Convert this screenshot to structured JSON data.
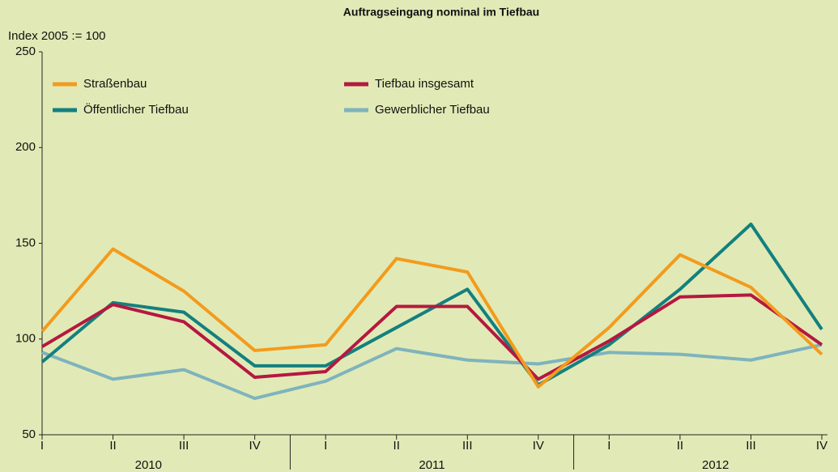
{
  "chart_data": {
    "type": "line",
    "title": "Auftragseingang nominal im Tiefbau",
    "y_label": "Index 2005 := 100",
    "categories": [
      "I",
      "II",
      "III",
      "IV",
      "I",
      "II",
      "III",
      "IV",
      "I",
      "II",
      "III",
      "IV"
    ],
    "year_groups": [
      "2010",
      "2011",
      "2012"
    ],
    "ylim": [
      50,
      250
    ],
    "yticks": [
      50,
      100,
      150,
      200,
      250
    ],
    "grid": false,
    "series": [
      {
        "name": "Straßenbau",
        "color": "#f39b1d",
        "values": [
          104,
          147,
          125,
          94,
          97,
          142,
          135,
          75,
          106,
          144,
          127,
          92
        ]
      },
      {
        "name": "Tiefbau insgesamt",
        "color": "#b5183f",
        "values": [
          96,
          118,
          109,
          80,
          83,
          117,
          117,
          79,
          99,
          122,
          123,
          97
        ]
      },
      {
        "name": "Öffentlicher Tiefbau",
        "color": "#13807f",
        "values": [
          88,
          119,
          114,
          86,
          86,
          106,
          126,
          76,
          97,
          126,
          160,
          105
        ]
      },
      {
        "name": "Gewerblicher Tiefbau",
        "color": "#7fb3bd",
        "values": [
          93,
          79,
          84,
          69,
          78,
          95,
          89,
          87,
          93,
          92,
          89,
          97
        ]
      }
    ]
  }
}
